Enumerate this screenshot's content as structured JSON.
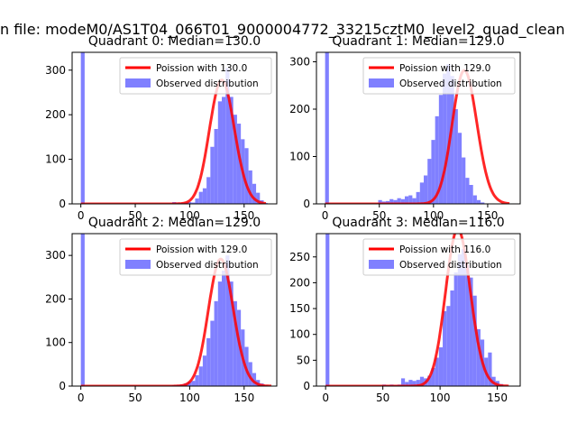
{
  "figure_title": "n file: modeM0/AS1T04_066T01_9000004772_33215cztM0_level2_quad_clean",
  "colors": {
    "poisson_line": "#ff0000",
    "observed_bars": "#8080ff",
    "axis": "#000000",
    "background": "#ffffff"
  },
  "chart_data": [
    {
      "type": "bar",
      "title": "Quadrant 0: Median=130.0",
      "legend": {
        "placement": "upper-right",
        "entries": [
          "Poission with 130.0",
          "Observed distribution"
        ]
      },
      "xlim": [
        -8,
        180
      ],
      "ylim": [
        0,
        340
      ],
      "xticks": [
        0,
        50,
        100,
        150
      ],
      "yticks": [
        0,
        100,
        200,
        300
      ],
      "poisson_lambda": 130.0,
      "poisson_range": [
        0,
        170
      ],
      "bins": {
        "start": 0,
        "width": 3.5,
        "counts": [
          1000,
          0,
          0,
          0,
          0,
          0,
          0,
          0,
          0,
          0,
          0,
          0,
          0,
          0,
          0,
          0,
          0,
          0,
          0,
          0,
          0,
          0,
          0,
          0,
          4,
          3,
          2,
          3,
          4,
          3,
          12,
          27,
          35,
          60,
          128,
          168,
          230,
          240,
          305,
          240,
          200,
          180,
          145,
          125,
          75,
          45,
          25,
          8,
          2,
          0
        ]
      }
    },
    {
      "type": "bar",
      "title": "Quadrant 1: Median=129.0",
      "legend": {
        "placement": "upper-right",
        "entries": [
          "Poission with 129.0",
          "Observed distribution"
        ]
      },
      "xlim": [
        -8,
        180
      ],
      "ylim": [
        0,
        320
      ],
      "xticks": [
        0,
        50,
        100,
        150
      ],
      "yticks": [
        0,
        100,
        200,
        300
      ],
      "poisson_lambda": 129.0,
      "poisson_range": [
        0,
        170
      ],
      "bins": {
        "start": 0,
        "width": 3.5,
        "counts": [
          1000,
          0,
          0,
          0,
          0,
          0,
          0,
          0,
          0,
          0,
          0,
          0,
          0,
          0,
          8,
          5,
          6,
          10,
          8,
          12,
          10,
          16,
          18,
          12,
          25,
          45,
          60,
          95,
          135,
          185,
          230,
          275,
          295,
          270,
          200,
          150,
          98,
          55,
          40,
          18,
          8,
          3,
          1,
          0,
          0,
          0,
          0,
          0,
          0,
          0
        ]
      }
    },
    {
      "type": "bar",
      "title": "Quadrant 2: Median=129.0",
      "legend": {
        "placement": "upper-right",
        "entries": [
          "Poission with 129.0",
          "Observed distribution"
        ]
      },
      "xlim": [
        -8,
        180
      ],
      "ylim": [
        0,
        350
      ],
      "xticks": [
        0,
        50,
        100,
        150
      ],
      "yticks": [
        0,
        100,
        200,
        300
      ],
      "poisson_lambda": 129.0,
      "poisson_range": [
        0,
        175
      ],
      "bins": {
        "start": 0,
        "width": 3.5,
        "counts": [
          1000,
          0,
          0,
          0,
          0,
          0,
          0,
          0,
          0,
          0,
          0,
          0,
          0,
          0,
          0,
          0,
          0,
          0,
          0,
          0,
          0,
          0,
          0,
          0,
          2,
          3,
          4,
          6,
          10,
          12,
          25,
          45,
          70,
          110,
          150,
          195,
          240,
          265,
          300,
          240,
          195,
          175,
          130,
          90,
          55,
          30,
          14,
          6,
          2,
          0
        ]
      }
    },
    {
      "type": "bar",
      "title": "Quadrant 3: Median=116.0",
      "legend": {
        "placement": "upper-right",
        "entries": [
          "Poission with 116.0",
          "Observed distribution"
        ]
      },
      "xlim": [
        -8,
        170
      ],
      "ylim": [
        0,
        295
      ],
      "xticks": [
        0,
        50,
        100,
        150
      ],
      "yticks": [
        0,
        50,
        100,
        150,
        200,
        250
      ],
      "poisson_lambda": 116.0,
      "poisson_range": [
        0,
        160
      ],
      "bins": {
        "start": 0,
        "width": 3.3,
        "counts": [
          1000,
          0,
          0,
          0,
          0,
          0,
          0,
          0,
          0,
          0,
          0,
          0,
          0,
          0,
          0,
          3,
          2,
          3,
          2,
          3,
          15,
          8,
          12,
          10,
          12,
          18,
          15,
          20,
          35,
          55,
          75,
          145,
          155,
          185,
          220,
          255,
          265,
          235,
          210,
          175,
          110,
          90,
          55,
          65,
          18,
          10,
          4,
          1,
          0
        ]
      }
    }
  ]
}
